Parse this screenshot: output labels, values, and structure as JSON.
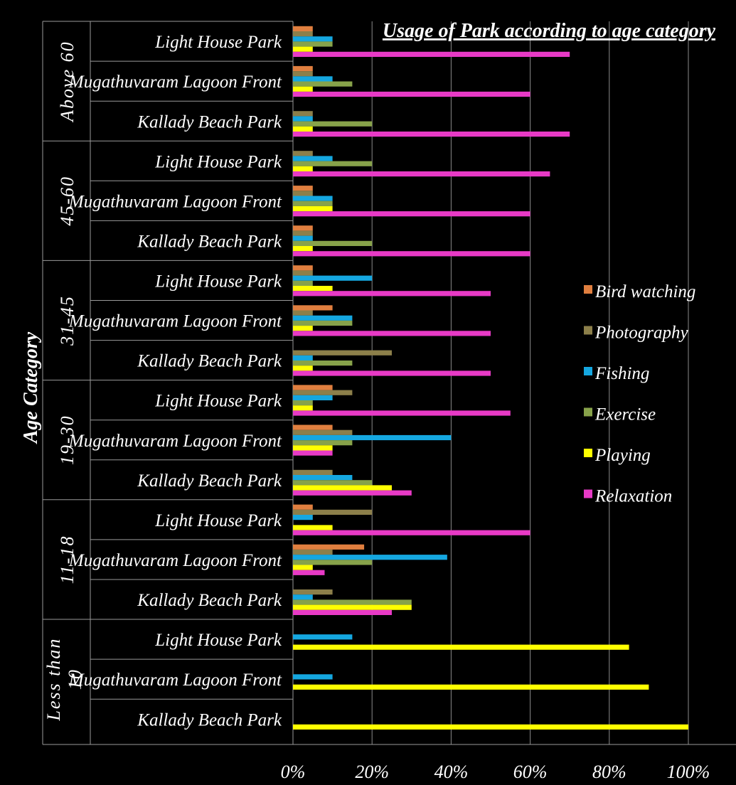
{
  "chart_data": {
    "type": "bar",
    "orientation": "horizontal",
    "title": "Usage of Park according to age category",
    "ylabel": "Age Category",
    "xlabel": "",
    "xlim": [
      0,
      100
    ],
    "x_ticks": [
      "0%",
      "20%",
      "40%",
      "60%",
      "80%",
      "100%"
    ],
    "grid": true,
    "legend_position": "right",
    "series": [
      {
        "name": "Bird watching",
        "color": "#E07F3F"
      },
      {
        "name": "Photography",
        "color": "#8C7F4A"
      },
      {
        "name": "Fishing",
        "color": "#15A7E0"
      },
      {
        "name": "Exercise",
        "color": "#87A24A"
      },
      {
        "name": "Playing",
        "color": "#FFFF00"
      },
      {
        "name": "Relaxation",
        "color": "#E83AC6"
      }
    ],
    "groups": [
      {
        "name": "Above 60",
        "label_lines": [
          "Above 60"
        ],
        "parks": [
          {
            "name": "Light House Park",
            "values": [
              5,
              5,
              10,
              10,
              5,
              70
            ]
          },
          {
            "name": "Mugathuvaram Lagoon Front",
            "values": [
              5,
              5,
              10,
              15,
              5,
              60
            ]
          },
          {
            "name": "Kallady Beach Park",
            "values": [
              0,
              5,
              5,
              20,
              5,
              70
            ]
          }
        ]
      },
      {
        "name": "45-60",
        "label_lines": [
          "45-60"
        ],
        "parks": [
          {
            "name": "Light House Park",
            "values": [
              0,
              5,
              10,
              20,
              5,
              65
            ]
          },
          {
            "name": "Mugathuvaram Lagoon Front",
            "values": [
              5,
              5,
              10,
              10,
              10,
              60
            ]
          },
          {
            "name": "Kallady Beach Park",
            "values": [
              5,
              5,
              5,
              20,
              5,
              60
            ]
          }
        ]
      },
      {
        "name": "31-45",
        "label_lines": [
          "31-45"
        ],
        "parks": [
          {
            "name": "Light House Park",
            "values": [
              5,
              5,
              20,
              5,
              10,
              50
            ]
          },
          {
            "name": "Mugathuvaram Lagoon Front",
            "values": [
              10,
              5,
              15,
              15,
              5,
              50
            ]
          },
          {
            "name": "Kallady Beach Park",
            "values": [
              0,
              25,
              5,
              15,
              5,
              50
            ]
          }
        ]
      },
      {
        "name": "19-30",
        "label_lines": [
          "19-30"
        ],
        "parks": [
          {
            "name": "Light House Park",
            "values": [
              10,
              15,
              10,
              5,
              5,
              55
            ]
          },
          {
            "name": "Mugathuvaram Lagoon Front",
            "values": [
              10,
              15,
              40,
              15,
              10,
              10
            ]
          },
          {
            "name": "Kallady Beach Park",
            "values": [
              0,
              10,
              15,
              20,
              25,
              30
            ]
          }
        ]
      },
      {
        "name": "11-18",
        "label_lines": [
          "11-18"
        ],
        "parks": [
          {
            "name": "Light House Park",
            "values": [
              5,
              20,
              5,
              0,
              10,
              60
            ]
          },
          {
            "name": "Mugathuvaram Lagoon Front",
            "values": [
              18,
              10,
              39,
              20,
              5,
              8
            ]
          },
          {
            "name": "Kallady Beach Park",
            "values": [
              0,
              10,
              5,
              30,
              30,
              25
            ]
          }
        ]
      },
      {
        "name": "Less than 10",
        "label_lines": [
          "Less than",
          "10"
        ],
        "parks": [
          {
            "name": "Light House Park",
            "values": [
              0,
              0,
              15,
              0,
              85,
              0
            ]
          },
          {
            "name": "Mugathuvaram Lagoon Front",
            "values": [
              0,
              0,
              10,
              0,
              90,
              0
            ]
          },
          {
            "name": "Kallady Beach Park",
            "values": [
              0,
              0,
              0,
              0,
              100,
              0
            ]
          }
        ]
      }
    ]
  }
}
